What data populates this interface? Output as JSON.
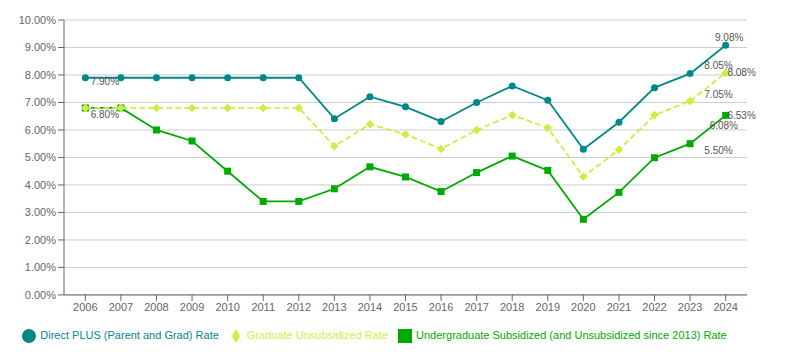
{
  "chart_data": {
    "type": "line",
    "x": [
      2006,
      2007,
      2008,
      2009,
      2010,
      2011,
      2012,
      2013,
      2014,
      2015,
      2016,
      2017,
      2018,
      2019,
      2020,
      2021,
      2022,
      2023,
      2024
    ],
    "series": [
      {
        "name": "Undergraduate Subsidized (and Unsubsidized since 2013) Rate",
        "color": "#00aa00",
        "marker": "square",
        "line_style": "solid",
        "values": [
          6.8,
          6.8,
          6.0,
          5.6,
          4.5,
          3.4,
          3.4,
          3.86,
          4.66,
          4.29,
          3.76,
          4.45,
          5.05,
          4.53,
          2.75,
          3.73,
          4.99,
          5.5,
          6.53
        ]
      },
      {
        "name": "Graduate Unsubsidized Rate",
        "color": "#ccee44",
        "marker": "diamond",
        "line_style": "dashed",
        "values": [
          6.8,
          6.8,
          6.8,
          6.8,
          6.8,
          6.8,
          6.8,
          5.41,
          6.21,
          5.84,
          5.31,
          6.0,
          6.54,
          6.08,
          4.3,
          5.28,
          6.54,
          7.05,
          8.08
        ]
      },
      {
        "name": "Direct PLUS (Parent and Grad) Rate",
        "color": "#008888",
        "marker": "circle",
        "line_style": "solid",
        "values": [
          7.9,
          7.9,
          7.9,
          7.9,
          7.9,
          7.9,
          7.9,
          6.41,
          7.21,
          6.84,
          6.31,
          7.0,
          7.6,
          7.08,
          5.3,
          6.28,
          7.54,
          8.05,
          9.08
        ]
      }
    ],
    "xlim": [
      2005.4,
      2024.6
    ],
    "xticks": [
      2006,
      2007,
      2008,
      2009,
      2010,
      2011,
      2012,
      2013,
      2014,
      2015,
      2016,
      2017,
      2018,
      2019,
      2020,
      2021,
      2022,
      2023,
      2024
    ],
    "ylim": [
      0.0,
      10.0
    ],
    "yticks": [
      {
        "value": 0.0,
        "label": "0.00%"
      },
      {
        "value": 1.0,
        "label": "1.00%"
      },
      {
        "value": 2.0,
        "label": "2.00%"
      },
      {
        "value": 3.0,
        "label": "3.00%"
      },
      {
        "value": 4.0,
        "label": "4.00%"
      },
      {
        "value": 5.0,
        "label": "5.00%"
      },
      {
        "value": 6.0,
        "label": "6.00%"
      },
      {
        "value": 7.0,
        "label": "7.00%"
      },
      {
        "value": 8.0,
        "label": "8.00%"
      },
      {
        "value": 9.0,
        "label": "9.00%"
      },
      {
        "value": 10.0,
        "label": "10.00%"
      }
    ],
    "annotations": [
      {
        "text": "7.90%",
        "x": 2006.15,
        "y": 7.75
      },
      {
        "text": "6.80%",
        "x": 2006.15,
        "y": 6.55
      },
      {
        "text": "9.08%",
        "x": 2023.7,
        "y": 9.35
      },
      {
        "text": "8.05%",
        "x": 2023.4,
        "y": 8.35
      },
      {
        "text": "7.05%",
        "x": 2023.4,
        "y": 7.3
      },
      {
        "text": "6.08%",
        "x": 2023.55,
        "y": 6.18
      },
      {
        "text": "5.50%",
        "x": 2023.4,
        "y": 5.25
      },
      {
        "text": "8.08%",
        "x": 2024.05,
        "y": 8.08
      },
      {
        "text": "6.53%",
        "x": 2024.05,
        "y": 6.53
      }
    ],
    "grid": true,
    "legend": "bottom"
  }
}
